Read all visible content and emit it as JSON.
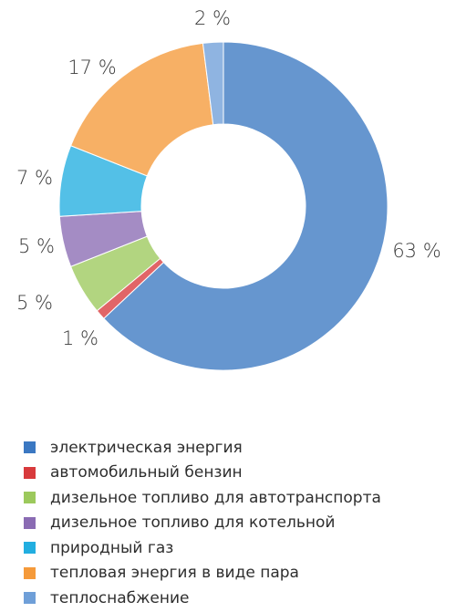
{
  "chart_data": {
    "type": "pie",
    "variant": "donut",
    "title": "",
    "slices": [
      {
        "name": "электрическая энергия",
        "value": 63,
        "label": "63 %",
        "color": "#3b78c2"
      },
      {
        "name": "автомобильный бензин",
        "value": 1,
        "label": "1 %",
        "color": "#d83a3c"
      },
      {
        "name": "дизельное топливо для автотранспорта",
        "value": 5,
        "label": "5 %",
        "color": "#9cc95c"
      },
      {
        "name": "дизельное топливо для котельной",
        "value": 5,
        "label": "5 %",
        "color": "#8a6bb3"
      },
      {
        "name": "природный газ",
        "value": 7,
        "label": "7 %",
        "color": "#22aee0"
      },
      {
        "name": "тепловая энергия в виде пара",
        "value": 17,
        "label": "17 %",
        "color": "#f59a3a"
      },
      {
        "name": "теплоснабжение",
        "value": 2,
        "label": "2 %",
        "color": "#6f9fd8"
      }
    ],
    "legend_position": "bottom"
  }
}
